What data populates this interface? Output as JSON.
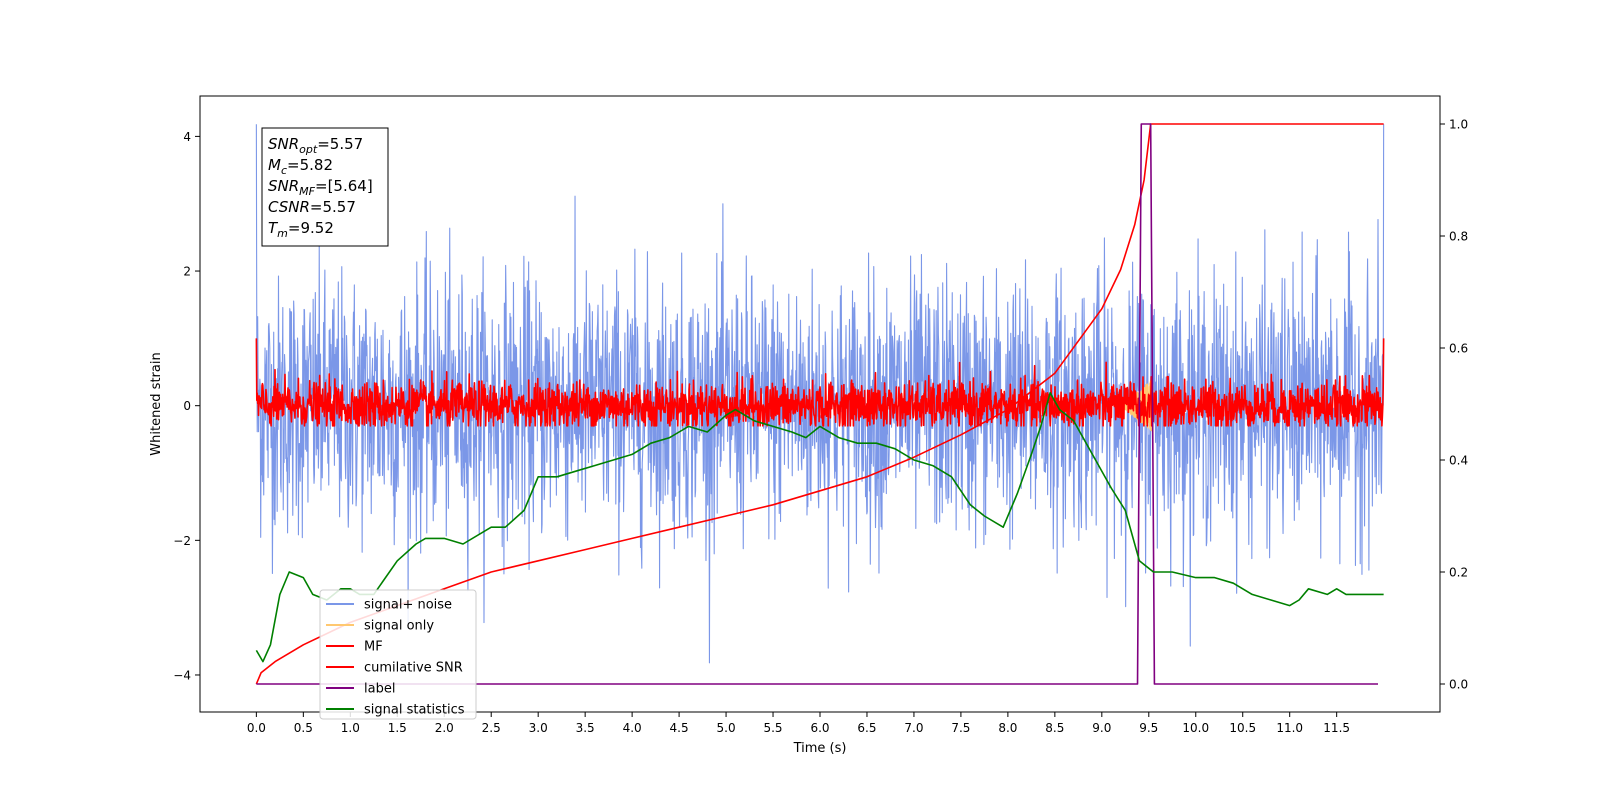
{
  "chart_data": {
    "type": "line",
    "xlabel": "Time (s)",
    "ylabel": "Whitened strain",
    "xlim": [
      -0.6,
      12.6
    ],
    "ylim": [
      -4.55,
      4.6
    ],
    "ylim_right": [
      -0.05,
      1.05
    ],
    "x_ticks": [
      0.0,
      0.5,
      1.0,
      1.5,
      2.0,
      2.5,
      3.0,
      3.5,
      4.0,
      4.5,
      5.0,
      5.5,
      6.0,
      6.5,
      7.0,
      7.5,
      8.0,
      8.5,
      9.0,
      9.5,
      10.0,
      10.5,
      11.0,
      11.5
    ],
    "x_tick_labels": [
      "0.0",
      "0.5",
      "1.0",
      "1.5",
      "2.0",
      "2.5",
      "3.0",
      "3.5",
      "4.0",
      "4.5",
      "5.0",
      "5.5",
      "6.0",
      "6.5",
      "7.0",
      "7.5",
      "8.0",
      "8.5",
      "9.0",
      "9.5",
      "10.0",
      "10.5",
      "11.0",
      "11.5"
    ],
    "y_ticks": [
      -4,
      -2,
      0,
      2,
      4
    ],
    "y_tick_labels": [
      "−4",
      "−2",
      "0",
      "2",
      "4"
    ],
    "y_ticks_right": [
      0.0,
      0.2,
      0.4,
      0.6,
      0.8,
      1.0
    ],
    "y_tick_labels_right": [
      "0.0",
      "0.2",
      "0.4",
      "0.6",
      "0.8",
      "1.0"
    ],
    "grid": false,
    "legend_placement": "lower-left",
    "annotation": {
      "lines": [
        {
          "sym": "SNR",
          "sub": "opt",
          "rest": "=5.57"
        },
        {
          "sym": "M",
          "sub": "c",
          "rest": "=5.82"
        },
        {
          "sym": "SNR",
          "sub": "MF",
          "rest": "=[5.64]"
        },
        {
          "sym": "CSNR",
          "sub": "",
          "rest": "=5.57"
        },
        {
          "sym": "T",
          "sub": "m",
          "rest": "=9.52"
        }
      ]
    },
    "series": [
      {
        "name": "signal+ noise",
        "color": "#7b97e8",
        "axis": "left",
        "kind": "noise",
        "x_range": [
          0.0,
          12.0
        ],
        "std": 0.95,
        "min": -4.1,
        "max": 4.18
      },
      {
        "name": "signal only",
        "color": "#ffc870",
        "axis": "left",
        "kind": "chirp",
        "x_range": [
          9.2,
          9.55
        ],
        "amplitude": 0.4
      },
      {
        "name": "MF",
        "color": "#ff0000",
        "axis": "left",
        "kind": "noise",
        "x_range": [
          0.0,
          12.0
        ],
        "std": 0.18,
        "min": -0.3,
        "max": 1.0
      },
      {
        "name": "cumilative SNR",
        "color": "#ff0000",
        "axis": "right",
        "x": [
          0.0,
          0.05,
          0.2,
          0.5,
          1.0,
          1.5,
          2.0,
          2.5,
          3.0,
          3.5,
          4.0,
          4.5,
          5.0,
          5.5,
          6.0,
          6.5,
          7.0,
          7.5,
          8.0,
          8.5,
          9.0,
          9.2,
          9.35,
          9.45,
          9.52,
          9.6,
          10.0,
          11.0,
          12.0
        ],
        "y": [
          0.0,
          0.02,
          0.04,
          0.07,
          0.11,
          0.14,
          0.17,
          0.2,
          0.22,
          0.24,
          0.26,
          0.28,
          0.3,
          0.32,
          0.345,
          0.37,
          0.405,
          0.445,
          0.49,
          0.555,
          0.67,
          0.74,
          0.82,
          0.9,
          1.0,
          1.0,
          1.0,
          1.0,
          1.0
        ]
      },
      {
        "name": "label",
        "color": "#800080",
        "axis": "right",
        "x": [
          0.0,
          9.38,
          9.42,
          9.52,
          9.56,
          11.94
        ],
        "y": [
          0.0,
          0.0,
          1.0,
          1.0,
          0.0,
          0.0
        ]
      },
      {
        "name": "signal statistics",
        "color": "#008000",
        "axis": "right",
        "x": [
          0.0,
          0.07,
          0.15,
          0.25,
          0.35,
          0.5,
          0.6,
          0.75,
          0.9,
          1.0,
          1.1,
          1.25,
          1.5,
          1.7,
          1.8,
          2.0,
          2.2,
          2.5,
          2.65,
          2.85,
          3.0,
          3.2,
          3.4,
          3.6,
          3.8,
          4.0,
          4.2,
          4.4,
          4.5,
          4.6,
          4.8,
          5.0,
          5.1,
          5.3,
          5.5,
          5.7,
          5.85,
          6.0,
          6.2,
          6.4,
          6.6,
          6.8,
          7.0,
          7.2,
          7.4,
          7.6,
          7.75,
          7.95,
          8.1,
          8.25,
          8.35,
          8.45,
          8.55,
          8.7,
          8.9,
          9.1,
          9.25,
          9.4,
          9.55,
          9.75,
          10.0,
          10.2,
          10.4,
          10.6,
          10.8,
          11.0,
          11.1,
          11.2,
          11.4,
          11.5,
          11.6,
          11.8,
          12.0
        ],
        "y": [
          0.06,
          0.04,
          0.07,
          0.16,
          0.2,
          0.19,
          0.16,
          0.15,
          0.17,
          0.17,
          0.16,
          0.16,
          0.22,
          0.25,
          0.26,
          0.26,
          0.25,
          0.28,
          0.28,
          0.31,
          0.37,
          0.37,
          0.38,
          0.39,
          0.4,
          0.41,
          0.43,
          0.44,
          0.45,
          0.46,
          0.45,
          0.48,
          0.49,
          0.47,
          0.46,
          0.45,
          0.44,
          0.46,
          0.44,
          0.43,
          0.43,
          0.42,
          0.4,
          0.39,
          0.37,
          0.32,
          0.3,
          0.28,
          0.34,
          0.41,
          0.46,
          0.52,
          0.49,
          0.47,
          0.41,
          0.35,
          0.31,
          0.22,
          0.2,
          0.2,
          0.19,
          0.19,
          0.18,
          0.16,
          0.15,
          0.14,
          0.15,
          0.17,
          0.16,
          0.17,
          0.16,
          0.16,
          0.16
        ]
      }
    ]
  }
}
